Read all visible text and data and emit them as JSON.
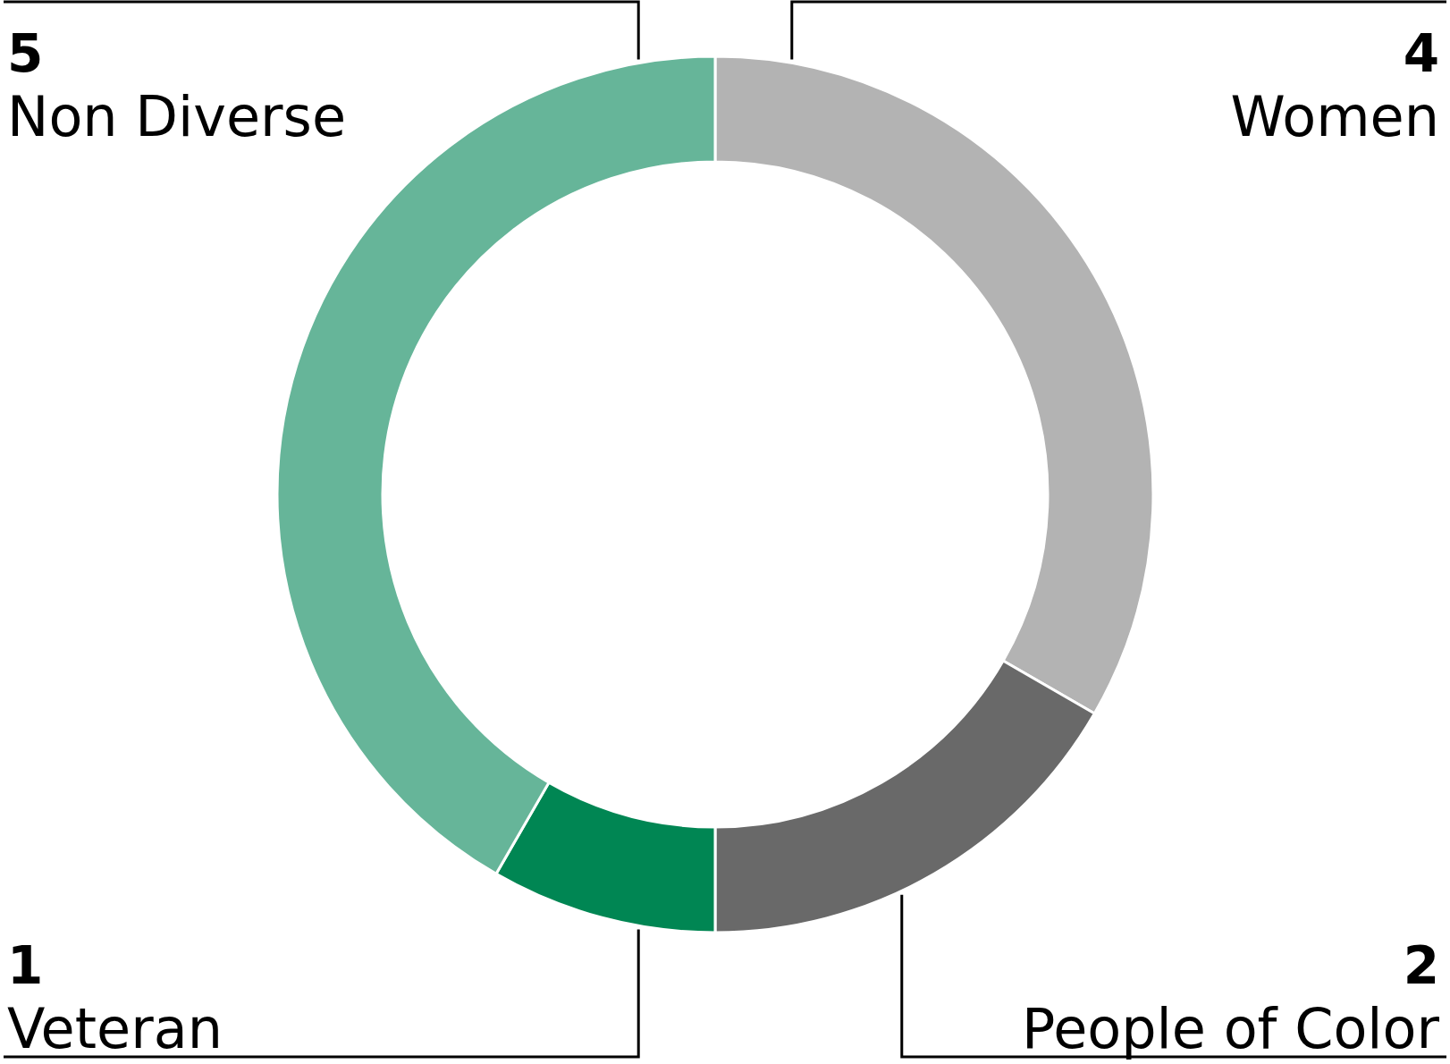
{
  "chart_data": {
    "type": "donut",
    "categories": [
      "Women",
      "People of Color",
      "Veteran",
      "Non Diverse"
    ],
    "values": [
      4,
      2,
      1,
      5
    ],
    "colors": [
      "#b3b3b3",
      "#696969",
      "#008653",
      "#66b599"
    ],
    "data_labels": true
  }
}
